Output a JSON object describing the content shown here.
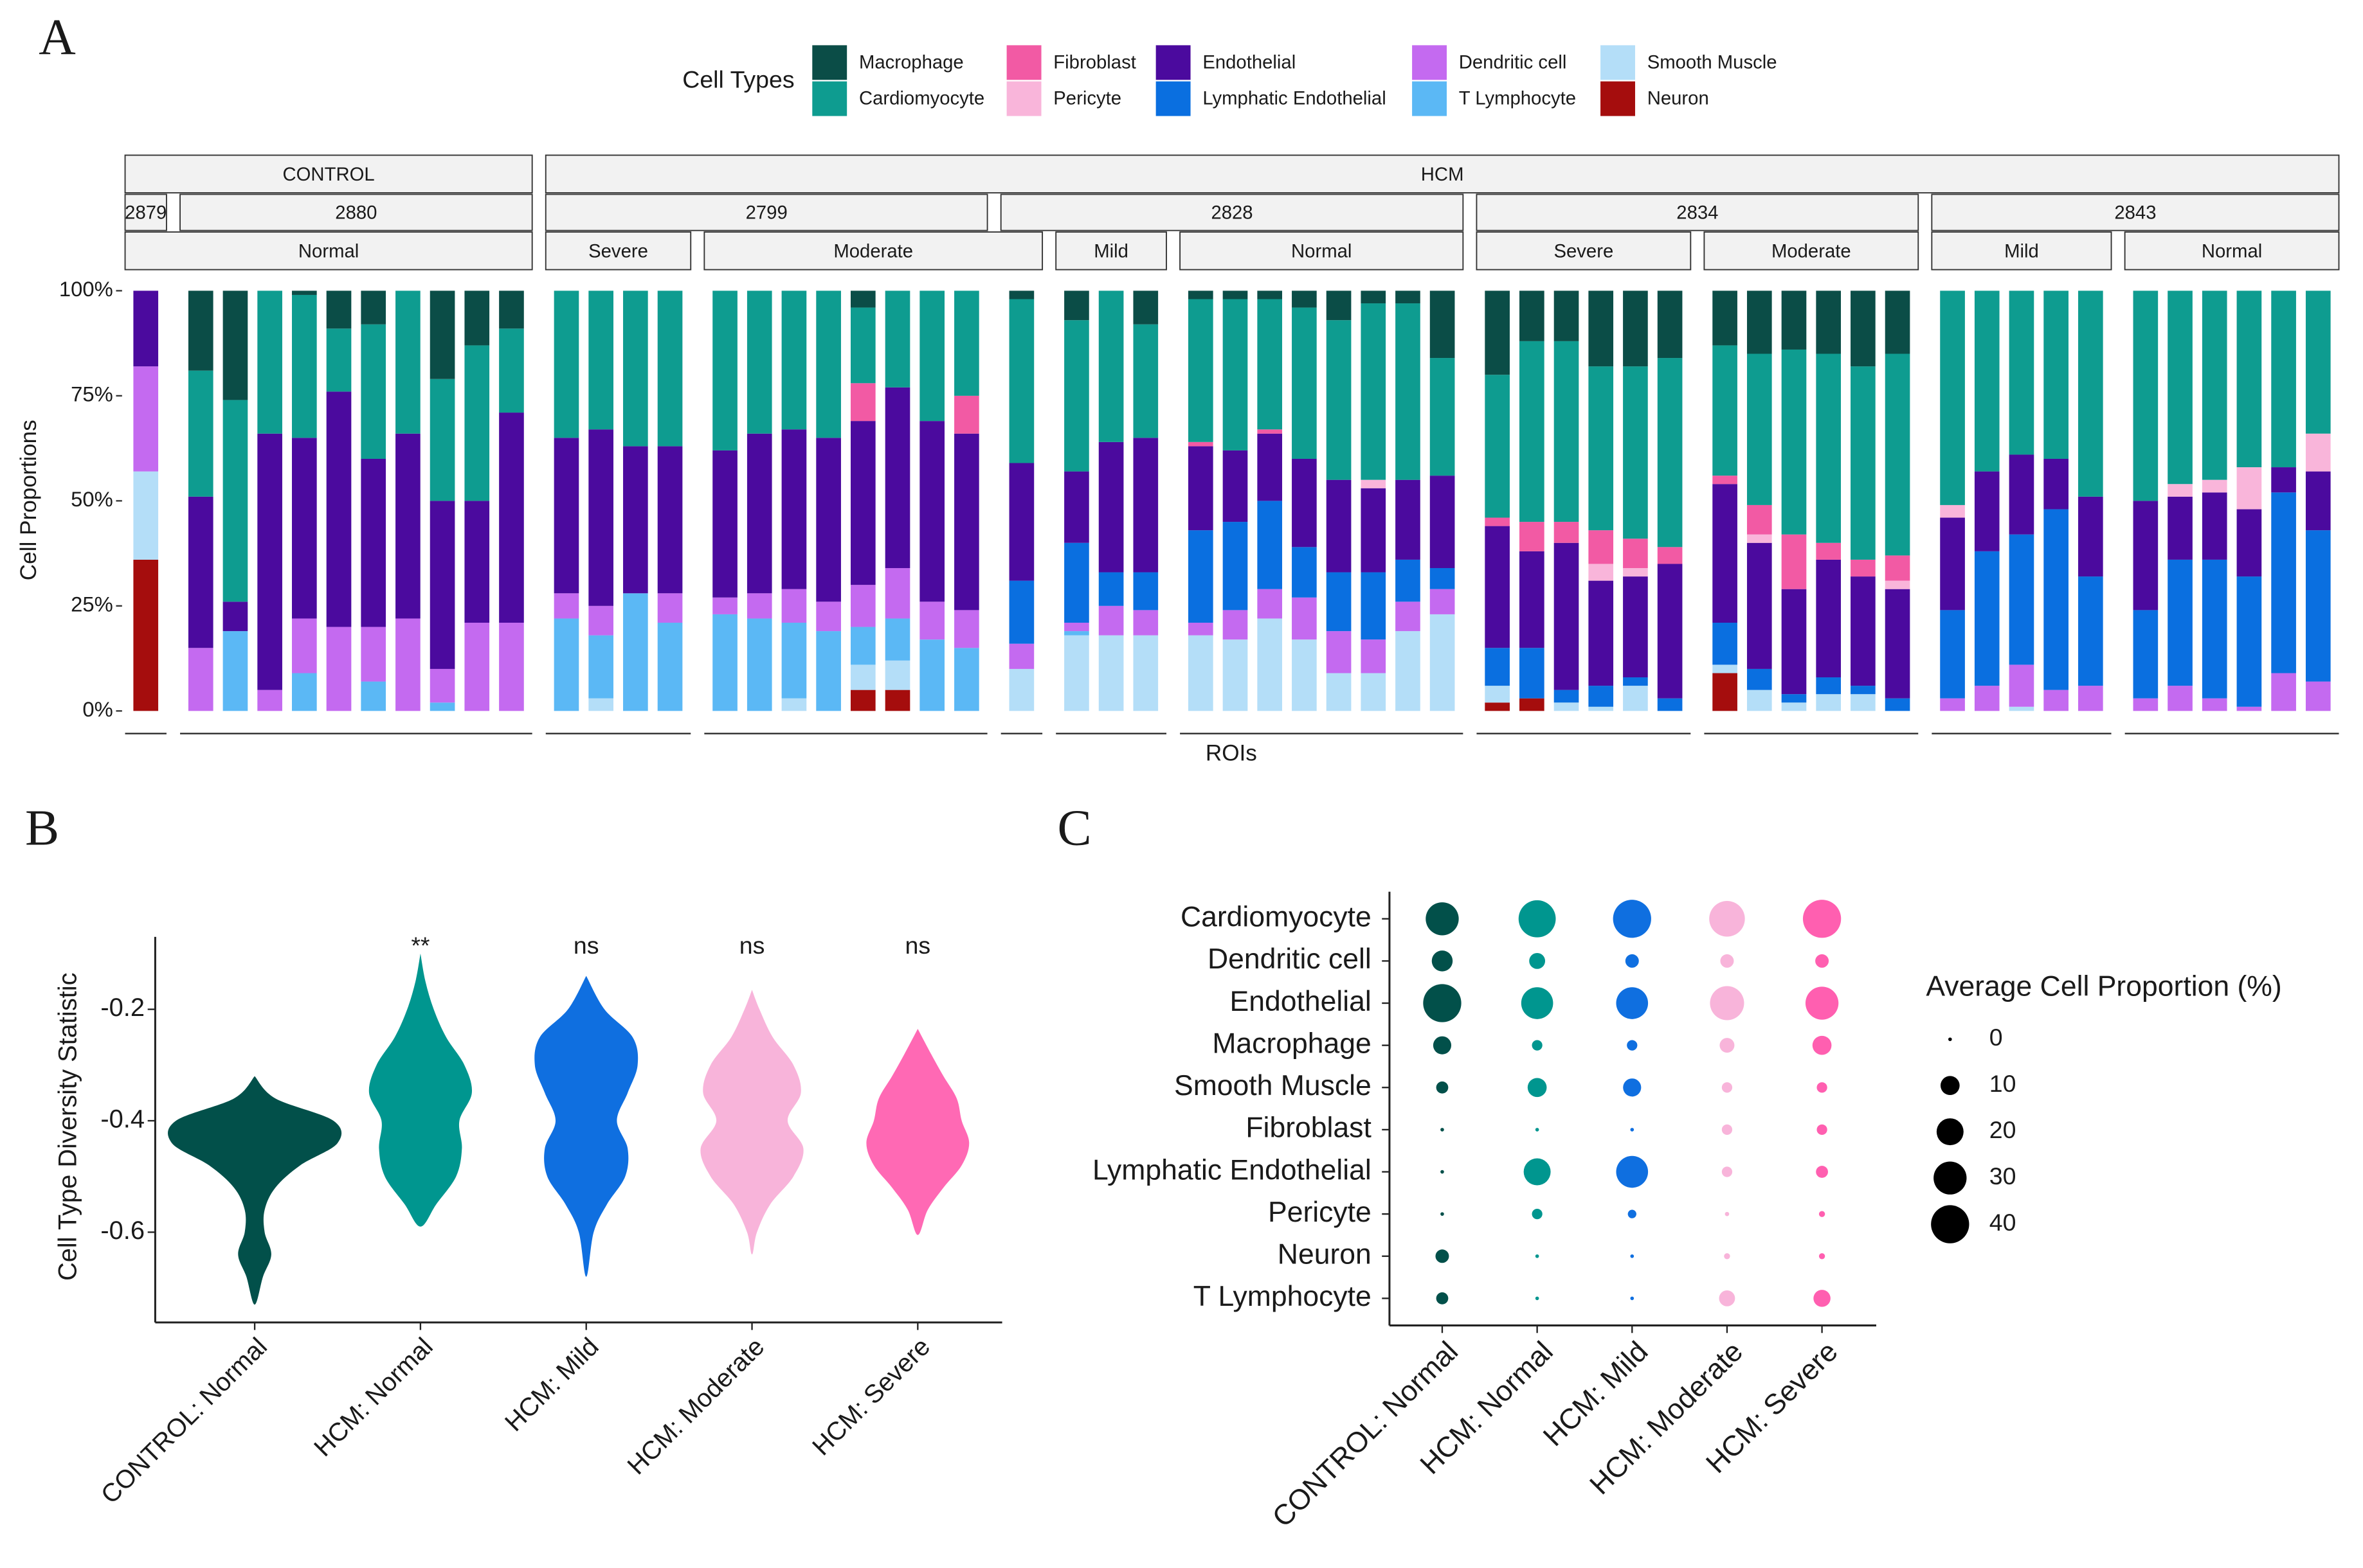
{
  "chart_data": [
    {
      "type": "bar",
      "label": "A",
      "legend_title": "Cell Types",
      "ylabel": "Cell Proportions",
      "xlabel": "ROIs",
      "ylim": [
        0,
        100
      ],
      "yticks": [
        {
          "value": 0,
          "label": "0%"
        },
        {
          "value": 25,
          "label": "25%"
        },
        {
          "value": 50,
          "label": "50%"
        },
        {
          "value": 75,
          "label": "75%"
        },
        {
          "value": 100,
          "label": "100%"
        }
      ],
      "categories": [
        null,
        null,
        null,
        null,
        null,
        null,
        null,
        null,
        null,
        null,
        null,
        null,
        null,
        null,
        null,
        null,
        null,
        null,
        null,
        null,
        null,
        null,
        null,
        null,
        null,
        null,
        null,
        null,
        null,
        null,
        null,
        null,
        null,
        null,
        null,
        null,
        null,
        null,
        null,
        null,
        null,
        null,
        null,
        null,
        null,
        null,
        null,
        null,
        null,
        null,
        null,
        null,
        null,
        null,
        null,
        null,
        null,
        null
      ],
      "strips": [
        [
          {
            "label": "CONTROL",
            "span": 11
          },
          {
            "label": "HCM",
            "span": 47
          }
        ],
        [
          {
            "label": "2879",
            "span": 1
          },
          {
            "label": "2880",
            "span": 10
          },
          {
            "label": "2799",
            "span": 12
          },
          {
            "label": "2828",
            "span": 12
          },
          {
            "label": "2834",
            "span": 12
          },
          {
            "label": "2843",
            "span": 11
          }
        ],
        [
          {
            "label": "Normal",
            "span": 11
          },
          {
            "label": "Severe",
            "span": 4
          },
          {
            "label": "Moderate",
            "span": 9
          },
          {
            "label": "Mild",
            "span": 3
          },
          {
            "label": "Normal",
            "span": 8
          },
          {
            "label": "Severe",
            "span": 6
          },
          {
            "label": "Moderate",
            "span": 6
          },
          {
            "label": "Mild",
            "span": 5
          },
          {
            "label": "Normal",
            "span": 6
          }
        ]
      ],
      "series": [
        {
          "name": "Macrophage",
          "color": "#0b4d47",
          "values": [
            0,
            19,
            26,
            0,
            1,
            9,
            8,
            0,
            21,
            13,
            9,
            0,
            0,
            0,
            0,
            0,
            0,
            0,
            0,
            4,
            0,
            0,
            0,
            2,
            7,
            0,
            8,
            2,
            2,
            2,
            4,
            7,
            3,
            3,
            16,
            20,
            12,
            12,
            18,
            18,
            16,
            13,
            15,
            14,
            15,
            18,
            15,
            0,
            0,
            0,
            0,
            0,
            0,
            0,
            0,
            0,
            0,
            0
          ]
        },
        {
          "name": "Cardiomyocyte",
          "color": "#0e9c90",
          "values": [
            0,
            30,
            48,
            34,
            34,
            15,
            32,
            34,
            29,
            37,
            20,
            35,
            33,
            37,
            37,
            38,
            34,
            33,
            35,
            18,
            23,
            31,
            25,
            39,
            36,
            36,
            27,
            34,
            36,
            31,
            36,
            38,
            42,
            42,
            28,
            34,
            43,
            43,
            39,
            41,
            45,
            31,
            36,
            44,
            45,
            46,
            48,
            51,
            43,
            39,
            40,
            49,
            50,
            46,
            45,
            42,
            42,
            34
          ]
        },
        {
          "name": "Fibroblast",
          "color": "#f25aa4",
          "values": [
            0,
            0,
            0,
            0,
            0,
            0,
            0,
            0,
            0,
            0,
            0,
            0,
            0,
            0,
            0,
            0,
            0,
            0,
            0,
            9,
            0,
            0,
            9,
            0,
            0,
            0,
            0,
            1,
            0,
            1,
            0,
            0,
            0,
            0,
            0,
            2,
            7,
            5,
            8,
            7,
            4,
            2,
            7,
            13,
            4,
            4,
            6,
            0,
            0,
            0,
            0,
            0,
            0,
            0,
            0,
            0,
            0,
            0
          ]
        },
        {
          "name": "Pericyte",
          "color": "#f9b5da",
          "values": [
            0,
            0,
            0,
            0,
            0,
            0,
            0,
            0,
            0,
            0,
            0,
            0,
            0,
            0,
            0,
            0,
            0,
            0,
            0,
            0,
            0,
            0,
            0,
            0,
            0,
            0,
            0,
            0,
            0,
            0,
            0,
            0,
            2,
            0,
            0,
            0,
            0,
            0,
            4,
            2,
            0,
            0,
            2,
            0,
            0,
            0,
            2,
            3,
            0,
            0,
            0,
            0,
            0,
            3,
            3,
            10,
            0,
            9
          ]
        },
        {
          "name": "Endothelial",
          "color": "#4b0a9e",
          "values": [
            18,
            36,
            7,
            61,
            43,
            56,
            40,
            44,
            40,
            29,
            50,
            37,
            42,
            35,
            35,
            35,
            38,
            38,
            39,
            39,
            43,
            43,
            42,
            28,
            17,
            31,
            32,
            20,
            17,
            16,
            21,
            22,
            20,
            19,
            22,
            29,
            23,
            35,
            25,
            24,
            32,
            33,
            30,
            25,
            28,
            26,
            26,
            22,
            19,
            19,
            12,
            19,
            26,
            15,
            16,
            16,
            6,
            14
          ]
        },
        {
          "name": "Lymphatic Endothelial",
          "color": "#0a6fe0",
          "values": [
            0,
            0,
            0,
            0,
            0,
            0,
            0,
            0,
            0,
            0,
            0,
            0,
            0,
            0,
            0,
            0,
            0,
            0,
            0,
            0,
            0,
            0,
            0,
            15,
            19,
            8,
            9,
            22,
            21,
            21,
            12,
            14,
            16,
            10,
            5,
            9,
            12,
            3,
            5,
            2,
            3,
            10,
            5,
            2,
            4,
            2,
            3,
            21,
            32,
            31,
            43,
            26,
            21,
            30,
            33,
            31,
            43,
            36
          ]
        },
        {
          "name": "Dendritic cell",
          "color": "#c46af0",
          "values": [
            25,
            15,
            0,
            5,
            13,
            20,
            13,
            22,
            8,
            21,
            21,
            6,
            7,
            0,
            7,
            4,
            6,
            8,
            7,
            10,
            12,
            9,
            9,
            6,
            2,
            7,
            6,
            3,
            7,
            7,
            10,
            10,
            8,
            7,
            6,
            0,
            0,
            0,
            0,
            0,
            0,
            0,
            0,
            0,
            0,
            0,
            0,
            3,
            6,
            10,
            5,
            6,
            3,
            6,
            3,
            1,
            9,
            7
          ]
        },
        {
          "name": "T Lymphocyte",
          "color": "#5bb8f5",
          "values": [
            0,
            0,
            19,
            0,
            9,
            0,
            7,
            0,
            2,
            0,
            0,
            22,
            15,
            28,
            21,
            23,
            22,
            18,
            19,
            9,
            10,
            17,
            15,
            0,
            1,
            0,
            0,
            0,
            0,
            0,
            0,
            0,
            0,
            0,
            0,
            0,
            0,
            0,
            0,
            0,
            0,
            0,
            0,
            0,
            0,
            0,
            0,
            0,
            0,
            0,
            0,
            0,
            0,
            0,
            0,
            0,
            0,
            0
          ]
        },
        {
          "name": "Smooth Muscle",
          "color": "#b4def8",
          "values": [
            21,
            0,
            0,
            0,
            0,
            0,
            0,
            0,
            0,
            0,
            0,
            0,
            3,
            0,
            0,
            0,
            0,
            3,
            0,
            6,
            7,
            0,
            0,
            10,
            18,
            18,
            18,
            18,
            17,
            22,
            17,
            9,
            9,
            19,
            23,
            4,
            0,
            2,
            1,
            6,
            0,
            2,
            5,
            2,
            4,
            4,
            0,
            0,
            0,
            1,
            0,
            0,
            0,
            0,
            0,
            0,
            0,
            0
          ]
        },
        {
          "name": "Neuron",
          "color": "#a50d0d",
          "values": [
            36,
            0,
            0,
            0,
            0,
            0,
            0,
            0,
            0,
            0,
            0,
            0,
            0,
            0,
            0,
            0,
            0,
            0,
            0,
            5,
            5,
            0,
            0,
            0,
            0,
            0,
            0,
            0,
            0,
            0,
            0,
            0,
            0,
            0,
            0,
            2,
            3,
            0,
            0,
            0,
            0,
            9,
            0,
            0,
            0,
            0,
            0,
            0,
            0,
            0,
            0,
            0,
            0,
            0,
            0,
            0,
            0,
            0
          ]
        }
      ]
    },
    {
      "type": "violin",
      "label": "B",
      "ylabel": "Cell Type Diversity Statistic",
      "categories": [
        "CONTROL: Normal",
        "HCM: Normal",
        "HCM: Mild",
        "HCM: Moderate",
        "HCM: Severe"
      ],
      "annotations": [
        null,
        "**",
        "ns",
        "ns",
        "ns"
      ],
      "ylim": [
        -0.762,
        -0.07
      ],
      "yticks": [
        -0.2,
        -0.4,
        -0.6
      ],
      "violins": [
        {
          "color": "#02504a",
          "y": [
            -0.32,
            -0.36,
            -0.4,
            -0.44,
            -0.48,
            -0.52,
            -0.56,
            -0.6,
            -0.64,
            -0.68,
            -0.73
          ],
          "density": [
            0,
            0.25,
            0.95,
            1,
            0.55,
            0.25,
            0.12,
            0.12,
            0.2,
            0.1,
            0
          ]
        },
        {
          "color": "#00968f",
          "y": [
            -0.1,
            -0.15,
            -0.2,
            -0.25,
            -0.3,
            -0.35,
            -0.4,
            -0.45,
            -0.5,
            -0.55,
            -0.59
          ],
          "density": [
            0,
            0.06,
            0.16,
            0.31,
            0.53,
            0.62,
            0.47,
            0.5,
            0.43,
            0.19,
            0
          ]
        },
        {
          "color": "#0f6fe0",
          "y": [
            -0.14,
            -0.2,
            -0.25,
            -0.3,
            -0.35,
            -0.4,
            -0.45,
            -0.5,
            -0.55,
            -0.6,
            -0.68
          ],
          "density": [
            0,
            0.22,
            0.56,
            0.62,
            0.5,
            0.37,
            0.5,
            0.47,
            0.25,
            0.09,
            0
          ]
        },
        {
          "color": "#f8b4da",
          "y": [
            -0.165,
            -0.2,
            -0.25,
            -0.3,
            -0.35,
            -0.4,
            -0.45,
            -0.5,
            -0.55,
            -0.6,
            -0.64
          ],
          "density": [
            0,
            0.09,
            0.25,
            0.5,
            0.59,
            0.43,
            0.62,
            0.5,
            0.22,
            0.06,
            0
          ]
        },
        {
          "color": "#ff69b4",
          "y": [
            -0.235,
            -0.28,
            -0.32,
            -0.36,
            -0.4,
            -0.44,
            -0.48,
            -0.52,
            -0.56,
            -0.605
          ],
          "density": [
            0,
            0.16,
            0.31,
            0.47,
            0.53,
            0.62,
            0.53,
            0.31,
            0.12,
            0
          ]
        }
      ]
    },
    {
      "type": "dot",
      "label": "C",
      "size_title": "Average Cell Proportion (%)",
      "size_breaks": [
        0,
        10,
        20,
        30,
        40
      ],
      "rows": [
        "Cardiomyocyte",
        "Dendritic cell",
        "Endothelial",
        "Macrophage",
        "Smooth Muscle",
        "Fibroblast",
        "Lymphatic Endothelial",
        "Pericyte",
        "Neuron",
        "T Lymphocyte"
      ],
      "categories": [
        "CONTROL: Normal",
        "HCM: Normal",
        "HCM: Mild",
        "HCM: Moderate",
        "HCM: Severe"
      ],
      "colors": [
        "#02504a",
        "#00968f",
        "#0f6fe0",
        "#f8b4da",
        "#ff5fb0"
      ],
      "values": [
        [
          30,
          38,
          40,
          35,
          40
        ],
        [
          12,
          7,
          5,
          5,
          5
        ],
        [
          40,
          28,
          28,
          32,
          30
        ],
        [
          9,
          3,
          3,
          6,
          10
        ],
        [
          4,
          10,
          9,
          3,
          3
        ],
        [
          0.3,
          0.3,
          0.2,
          3,
          3
        ],
        [
          0.2,
          20,
          28,
          3,
          4
        ],
        [
          0.2,
          3,
          2,
          0.5,
          1
        ],
        [
          5,
          0.2,
          0.2,
          1,
          1
        ],
        [
          4,
          0.2,
          0.2,
          7,
          8
        ]
      ]
    }
  ]
}
